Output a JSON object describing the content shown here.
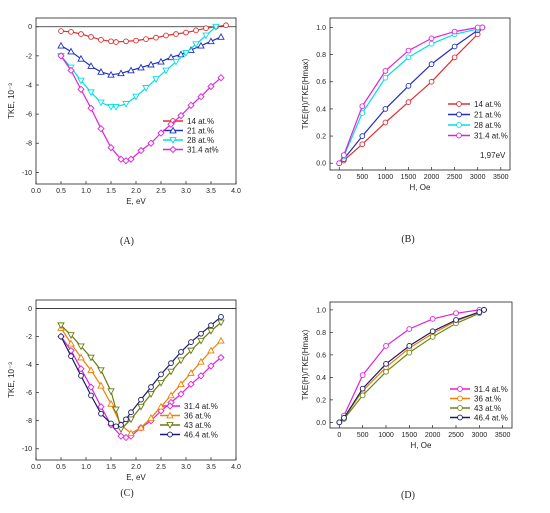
{
  "figure": {
    "panel_labels": [
      "(A)",
      "(B)",
      "(C)",
      "(D)"
    ]
  },
  "chart_data": [
    {
      "panel": "A",
      "type": "line",
      "xlabel": "E, eV",
      "ylabel": "TKE, 10⁻³",
      "xlim": [
        0.0,
        4.0
      ],
      "ylim": [
        -10.8,
        0.6
      ],
      "xticks": [
        "0.0",
        "0.5",
        "1.0",
        "1.5",
        "2.0",
        "2.5",
        "3.0",
        "3.5",
        "4.0"
      ],
      "yticks": [
        "0",
        "-2",
        "-4",
        "-6",
        "-8",
        "-10"
      ],
      "grid": false,
      "legend_position": "right-middle",
      "zero_line": true,
      "series": [
        {
          "name": "14 at.%",
          "color": "#e03030",
          "marker": "circle",
          "x": [
            0.5,
            0.7,
            0.9,
            1.1,
            1.3,
            1.5,
            1.6,
            1.8,
            2.0,
            2.2,
            2.4,
            2.6,
            2.8,
            3.0,
            3.2,
            3.4,
            3.6,
            3.8
          ],
          "y": [
            -0.3,
            -0.35,
            -0.5,
            -0.7,
            -0.9,
            -1.0,
            -1.05,
            -1.0,
            -0.95,
            -0.85,
            -0.75,
            -0.6,
            -0.5,
            -0.4,
            -0.25,
            -0.1,
            0.0,
            0.1
          ]
        },
        {
          "name": "21 at.%",
          "color": "#2030c0",
          "marker": "triangle",
          "x": [
            0.5,
            0.7,
            0.9,
            1.1,
            1.3,
            1.5,
            1.7,
            1.9,
            2.1,
            2.3,
            2.5,
            2.7,
            2.9,
            3.1,
            3.3,
            3.5,
            3.7
          ],
          "y": [
            -1.3,
            -1.7,
            -2.2,
            -2.7,
            -3.1,
            -3.3,
            -3.2,
            -3.0,
            -2.8,
            -2.6,
            -2.4,
            -2.1,
            -1.9,
            -1.6,
            -1.3,
            -1.0,
            -0.7
          ]
        },
        {
          "name": "28 at.%",
          "color": "#00e0e0",
          "marker": "triangle-down",
          "x": [
            0.5,
            0.7,
            0.9,
            1.1,
            1.3,
            1.5,
            1.6,
            1.8,
            2.0,
            2.2,
            2.4,
            2.6,
            2.8,
            3.0,
            3.2,
            3.4,
            3.6
          ],
          "y": [
            -2.0,
            -2.8,
            -3.7,
            -4.5,
            -5.2,
            -5.5,
            -5.5,
            -5.3,
            -4.8,
            -4.2,
            -3.6,
            -3.0,
            -2.4,
            -1.8,
            -1.2,
            -0.6,
            0.0
          ]
        },
        {
          "name": "31.4 at%",
          "color": "#e020e0",
          "marker": "diamond",
          "x": [
            0.5,
            0.7,
            0.9,
            1.1,
            1.3,
            1.5,
            1.7,
            1.8,
            1.9,
            2.1,
            2.3,
            2.5,
            2.7,
            2.9,
            3.1,
            3.3,
            3.5,
            3.7
          ],
          "y": [
            -2.0,
            -3.0,
            -4.3,
            -5.6,
            -7.0,
            -8.3,
            -9.1,
            -9.2,
            -9.1,
            -8.5,
            -8.0,
            -7.3,
            -6.7,
            -6.1,
            -5.4,
            -4.8,
            -4.1,
            -3.5
          ]
        }
      ]
    },
    {
      "panel": "B",
      "type": "line",
      "xlabel": "H, Oe",
      "ylabel": "TKE(H)/TKE(Hmax)",
      "xlim": [
        -200,
        3700
      ],
      "ylim": [
        -0.05,
        1.07
      ],
      "xticks": [
        "0",
        "500",
        "1000",
        "1500",
        "2000",
        "2500",
        "3000",
        "3500"
      ],
      "yticks": [
        "0.0",
        "0.2",
        "0.4",
        "0.6",
        "0.8",
        "1.0"
      ],
      "grid": false,
      "legend_position": "right-middle",
      "annotation": "1,97eV",
      "series": [
        {
          "name": "14 at.%",
          "color": "#e03030",
          "marker": "circle",
          "x": [
            0,
            100,
            500,
            1000,
            1500,
            2000,
            2500,
            3000,
            3100
          ],
          "y": [
            0.0,
            0.02,
            0.14,
            0.3,
            0.45,
            0.6,
            0.78,
            0.95,
            1.0
          ]
        },
        {
          "name": "21 at.%",
          "color": "#2030c0",
          "marker": "circle",
          "x": [
            0,
            100,
            500,
            1000,
            1500,
            2000,
            2500,
            3000,
            3100
          ],
          "y": [
            0.0,
            0.03,
            0.2,
            0.4,
            0.57,
            0.73,
            0.86,
            0.98,
            1.0
          ]
        },
        {
          "name": "28 at.%",
          "color": "#00e0e0",
          "marker": "circle",
          "x": [
            0,
            100,
            500,
            1000,
            1500,
            2000,
            2500,
            3000,
            3100
          ],
          "y": [
            0.0,
            0.05,
            0.37,
            0.63,
            0.78,
            0.88,
            0.95,
            0.99,
            1.0
          ]
        },
        {
          "name": "31.4 at.%",
          "color": "#e020e0",
          "marker": "circle",
          "x": [
            0,
            100,
            500,
            1000,
            1500,
            2000,
            2500,
            3000,
            3100
          ],
          "y": [
            0.0,
            0.06,
            0.42,
            0.68,
            0.83,
            0.92,
            0.97,
            1.0,
            1.0
          ]
        }
      ]
    },
    {
      "panel": "C",
      "type": "line",
      "xlabel": "E, eV",
      "ylabel": "TKE, 10⁻³",
      "xlim": [
        0.0,
        4.0
      ],
      "ylim": [
        -10.8,
        0.6
      ],
      "xticks": [
        "0.0",
        "0.5",
        "1.0",
        "1.5",
        "2.0",
        "2.5",
        "3.0",
        "3.5",
        "4.0"
      ],
      "yticks": [
        "0",
        "-2",
        "-4",
        "-6",
        "-8",
        "-10"
      ],
      "grid": false,
      "legend_position": "bottom-right",
      "zero_line": true,
      "series": [
        {
          "name": "31.4 at.%",
          "color": "#e020e0",
          "marker": "diamond",
          "x": [
            0.5,
            0.7,
            0.9,
            1.1,
            1.3,
            1.5,
            1.7,
            1.8,
            1.9,
            2.1,
            2.3,
            2.5,
            2.7,
            2.9,
            3.1,
            3.3,
            3.5,
            3.7
          ],
          "y": [
            -2.0,
            -3.0,
            -4.3,
            -5.6,
            -7.0,
            -8.3,
            -9.1,
            -9.2,
            -9.1,
            -8.5,
            -8.0,
            -7.3,
            -6.7,
            -6.1,
            -5.4,
            -4.8,
            -4.1,
            -3.5
          ]
        },
        {
          "name": "36 at.%",
          "color": "#f08000",
          "marker": "triangle",
          "x": [
            0.5,
            0.7,
            0.9,
            1.1,
            1.3,
            1.5,
            1.7,
            1.9,
            2.1,
            2.3,
            2.5,
            2.7,
            2.9,
            3.1,
            3.3,
            3.5,
            3.7
          ],
          "y": [
            -1.4,
            -2.5,
            -3.5,
            -4.4,
            -5.5,
            -6.8,
            -8.3,
            -8.9,
            -8.5,
            -7.8,
            -7.0,
            -6.2,
            -5.4,
            -4.6,
            -3.8,
            -3.0,
            -2.3
          ]
        },
        {
          "name": "43 at.%",
          "color": "#6a7a10",
          "marker": "triangle-down",
          "x": [
            0.5,
            0.7,
            0.9,
            1.1,
            1.3,
            1.5,
            1.6,
            1.7,
            1.9,
            2.1,
            2.3,
            2.5,
            2.7,
            2.9,
            3.1,
            3.3,
            3.5,
            3.7
          ],
          "y": [
            -1.2,
            -1.9,
            -2.7,
            -3.5,
            -4.4,
            -5.9,
            -7.2,
            -8.6,
            -7.9,
            -7.0,
            -6.1,
            -5.3,
            -4.5,
            -3.7,
            -3.0,
            -2.3,
            -1.6,
            -1.0
          ]
        },
        {
          "name": "46.4 at.%",
          "color": "#1a1a70",
          "marker": "circle",
          "x": [
            0.5,
            0.7,
            0.9,
            1.1,
            1.3,
            1.5,
            1.6,
            1.7,
            1.8,
            1.9,
            2.1,
            2.3,
            2.5,
            2.7,
            2.9,
            3.1,
            3.3,
            3.5,
            3.7
          ],
          "y": [
            -2.0,
            -3.4,
            -4.8,
            -6.2,
            -7.5,
            -8.2,
            -8.4,
            -8.3,
            -7.9,
            -7.4,
            -6.5,
            -5.6,
            -4.7,
            -3.9,
            -3.1,
            -2.4,
            -1.8,
            -1.2,
            -0.6
          ]
        }
      ]
    },
    {
      "panel": "D",
      "type": "line",
      "xlabel": "H, Oe",
      "ylabel": "TKE(H)/TKE(Hmax)",
      "xlim": [
        -200,
        3700
      ],
      "ylim": [
        -0.05,
        1.07
      ],
      "xticks": [
        "0",
        "500",
        "1000",
        "1500",
        "2000",
        "2500",
        "3000",
        "3500"
      ],
      "yticks": [
        "0.0",
        "0.2",
        "0.4",
        "0.6",
        "0.8",
        "1.0"
      ],
      "grid": false,
      "legend_position": "bottom-right",
      "series": [
        {
          "name": "31.4 at.%",
          "color": "#e020e0",
          "marker": "circle",
          "x": [
            0,
            100,
            500,
            1000,
            1500,
            2000,
            2500,
            3000,
            3100
          ],
          "y": [
            0.0,
            0.06,
            0.42,
            0.68,
            0.83,
            0.92,
            0.97,
            1.0,
            1.0
          ]
        },
        {
          "name": "36 at.%",
          "color": "#f08000",
          "marker": "circle",
          "x": [
            0,
            100,
            500,
            1000,
            1500,
            2000,
            2500,
            3000,
            3100
          ],
          "y": [
            0.0,
            0.04,
            0.28,
            0.49,
            0.66,
            0.79,
            0.9,
            0.98,
            1.0
          ]
        },
        {
          "name": "43 at.%",
          "color": "#6a8a10",
          "marker": "circle",
          "x": [
            0,
            100,
            500,
            1000,
            1500,
            2000,
            2500,
            3000,
            3100
          ],
          "y": [
            0.0,
            0.03,
            0.24,
            0.45,
            0.62,
            0.76,
            0.88,
            0.97,
            1.0
          ]
        },
        {
          "name": "46.4 at.%",
          "color": "#1a1a70",
          "marker": "circle",
          "x": [
            0,
            100,
            500,
            1000,
            1500,
            2000,
            2500,
            3000,
            3100
          ],
          "y": [
            0.0,
            0.04,
            0.3,
            0.52,
            0.68,
            0.81,
            0.91,
            0.98,
            1.0
          ]
        }
      ]
    }
  ]
}
